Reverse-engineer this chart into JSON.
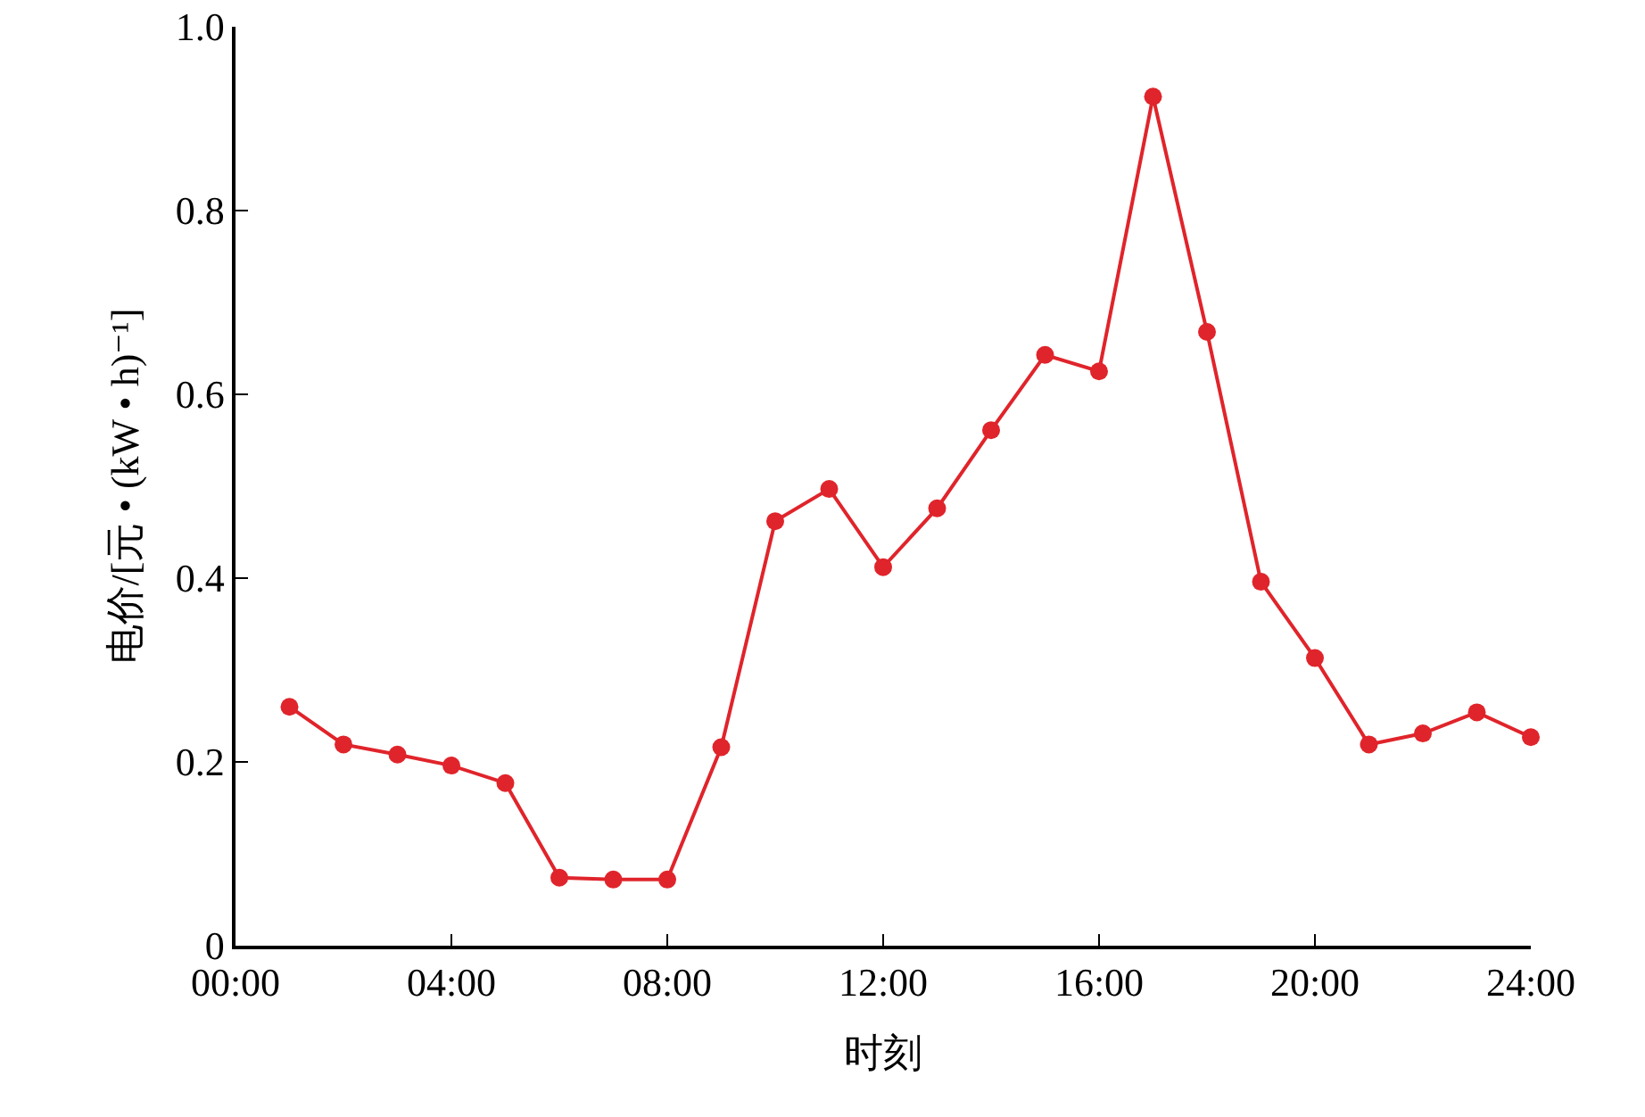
{
  "chart_data": {
    "type": "line",
    "xlabel": "时刻",
    "ylabel": "电价/[元 • (kW • h)⁻¹]",
    "x": [
      1,
      2,
      3,
      4,
      5,
      6,
      7,
      8,
      9,
      10,
      11,
      12,
      13,
      14,
      15,
      16,
      17,
      18,
      19,
      20,
      21,
      22,
      23,
      24
    ],
    "series": [
      {
        "color": "#e0242b",
        "values": [
          0.26,
          0.219,
          0.208,
          0.196,
          0.177,
          0.074,
          0.072,
          0.072,
          0.216,
          0.462,
          0.497,
          0.412,
          0.476,
          0.561,
          0.643,
          0.625,
          0.924,
          0.668,
          0.396,
          0.313,
          0.219,
          0.231,
          0.254,
          0.227
        ]
      }
    ],
    "xlim": [
      0,
      24
    ],
    "xticks": [
      {
        "value": 0,
        "label": "00:00"
      },
      {
        "value": 4,
        "label": "04:00"
      },
      {
        "value": 8,
        "label": "08:00"
      },
      {
        "value": 12,
        "label": "12:00"
      },
      {
        "value": 16,
        "label": "16:00"
      },
      {
        "value": 20,
        "label": "20:00"
      },
      {
        "value": 24,
        "label": "24:00"
      }
    ],
    "ylim": [
      0,
      1
    ],
    "yticks": [
      0,
      {
        "value": 0.2,
        "label": "0.2"
      },
      {
        "value": 0.4,
        "label": "0.4"
      },
      {
        "value": 0.6,
        "label": "0.6"
      },
      {
        "value": 0.8,
        "label": "0.8"
      },
      {
        "value": 1,
        "label": "1.0"
      }
    ],
    "grid": false,
    "marker": "circle",
    "line_style": "solid"
  }
}
